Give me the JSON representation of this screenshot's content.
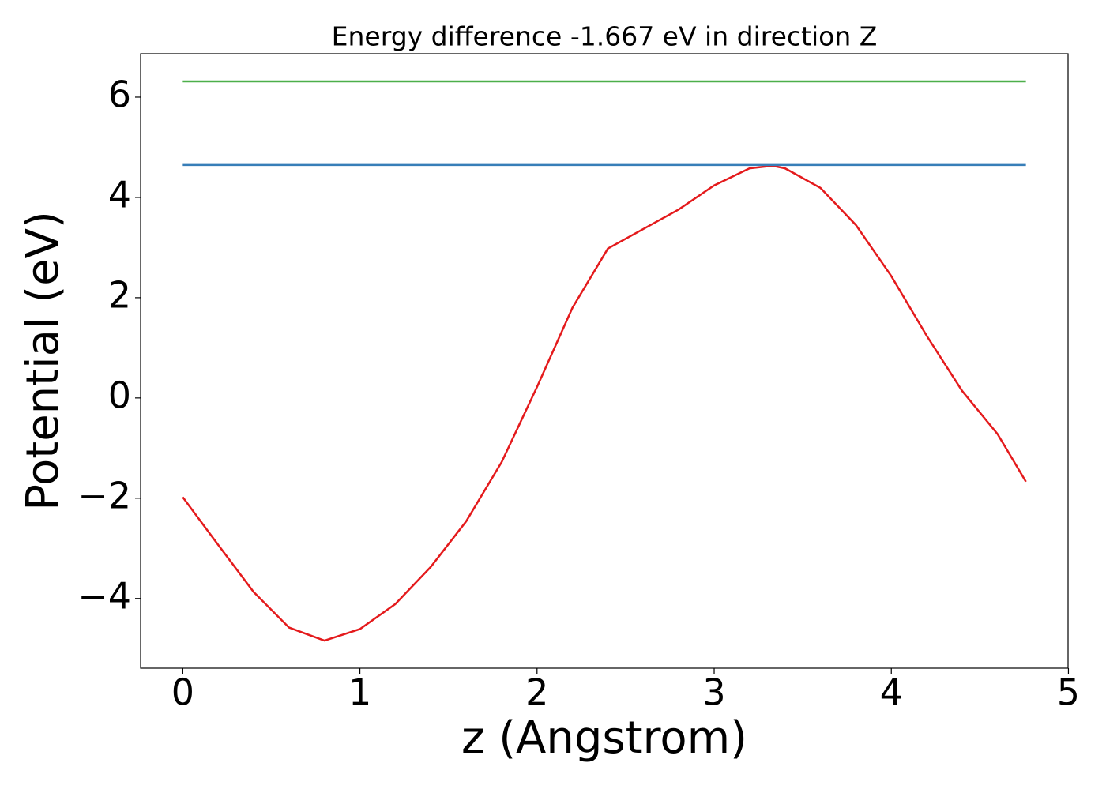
{
  "chart_data": {
    "type": "line",
    "title": "Energy difference -1.667 eV in direction Z",
    "x_label": "z (Angstrom)",
    "y_label": "Potential (eV)",
    "xlim": [
      -0.238,
      4.998
    ],
    "ylim": [
      -5.39,
      6.866
    ],
    "xticks": [
      0,
      1,
      2,
      3,
      4,
      5
    ],
    "yticks": [
      {
        "value": -4,
        "label": "−4"
      },
      {
        "value": -2,
        "label": "−2"
      },
      0,
      2,
      4,
      6
    ],
    "grid": false,
    "series": [
      {
        "color": "#e41a1c",
        "x": [
          0,
          0.2,
          0.4,
          0.6,
          0.8,
          1.0,
          1.2,
          1.4,
          1.6,
          1.8,
          2.0,
          2.2,
          2.4,
          2.6,
          2.8,
          3.0,
          3.2,
          3.33,
          3.4,
          3.6,
          3.8,
          4.0,
          4.2,
          4.4,
          4.6,
          4.76
        ],
        "values": [
          -1.98,
          -2.93,
          -3.87,
          -4.58,
          -4.84,
          -4.61,
          -4.11,
          -3.37,
          -2.46,
          -1.28,
          0.22,
          1.8,
          2.98,
          3.37,
          3.76,
          4.24,
          4.58,
          4.63,
          4.58,
          4.19,
          3.45,
          2.43,
          1.24,
          0.14,
          -0.72,
          -1.67
        ]
      },
      {
        "color": "#377eb8",
        "x": [
          0,
          4.76
        ],
        "values": [
          4.646,
          4.646
        ]
      },
      {
        "color": "#4daf4a",
        "x": [
          0,
          4.76
        ],
        "values": [
          6.315,
          6.315
        ]
      }
    ]
  }
}
